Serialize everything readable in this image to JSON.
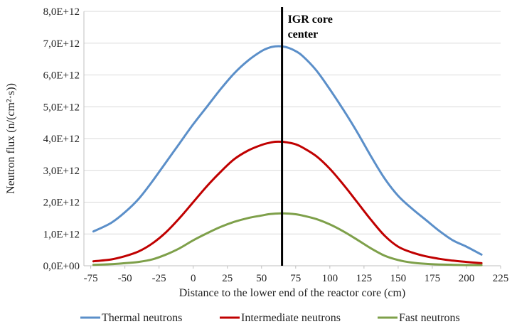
{
  "chart_data": {
    "type": "line",
    "xlabel": "Distance to the lower end of the reactor core (cm)",
    "ylabel": "Neutron flux (n/(cm²·s))",
    "xlim": [
      -80,
      225
    ],
    "ylim": [
      0,
      8000000000000.0
    ],
    "x_ticks": [
      -75,
      -50,
      -25,
      0,
      25,
      50,
      75,
      100,
      125,
      150,
      175,
      200,
      225
    ],
    "x_tick_labels": [
      "-75",
      "-50",
      "-25",
      "0",
      "25",
      "50",
      "75",
      "100",
      "125",
      "150",
      "175",
      "200",
      "225"
    ],
    "y_ticks": [
      0,
      1000000000000.0,
      2000000000000.0,
      3000000000000.0,
      4000000000000.0,
      5000000000000.0,
      6000000000000.0,
      7000000000000.0,
      8000000000000.0
    ],
    "y_tick_labels": [
      "0,0E+00",
      "1,0E+12",
      "2,0E+12",
      "3,0E+12",
      "4,0E+12",
      "5,0E+12",
      "6,0E+12",
      "7,0E+12",
      "8,0E+12"
    ],
    "grid": "horizontal",
    "legend_position": "bottom",
    "annotation": {
      "line1": "IGR core",
      "line2": "center",
      "x": 65
    },
    "series": [
      {
        "name": "Thermal neutrons",
        "color": "#5b8fc9",
        "x": [
          -73,
          -60,
          -50,
          -40,
          -30,
          -20,
          -10,
          0,
          10,
          20,
          30,
          40,
          50,
          55,
          60,
          65,
          70,
          75,
          80,
          90,
          100,
          110,
          120,
          130,
          140,
          150,
          160,
          170,
          180,
          190,
          200,
          211
        ],
        "y": [
          1080000000000.0,
          1350000000000.0,
          1680000000000.0,
          2100000000000.0,
          2650000000000.0,
          3250000000000.0,
          3850000000000.0,
          4450000000000.0,
          5000000000000.0,
          5550000000000.0,
          6050000000000.0,
          6450000000000.0,
          6750000000000.0,
          6850000000000.0,
          6900000000000.0,
          6900000000000.0,
          6850000000000.0,
          6750000000000.0,
          6600000000000.0,
          6150000000000.0,
          5550000000000.0,
          4900000000000.0,
          4200000000000.0,
          3450000000000.0,
          2750000000000.0,
          2200000000000.0,
          1800000000000.0,
          1450000000000.0,
          1100000000000.0,
          800000000000.0,
          600000000000.0,
          350000000000.0
        ]
      },
      {
        "name": "Intermediate neutrons",
        "color": "#c00000",
        "x": [
          -73,
          -60,
          -50,
          -40,
          -30,
          -20,
          -10,
          0,
          10,
          20,
          30,
          40,
          50,
          55,
          60,
          65,
          70,
          75,
          80,
          90,
          100,
          110,
          120,
          130,
          140,
          150,
          160,
          170,
          180,
          190,
          200,
          211
        ],
        "y": [
          140000000000.0,
          200000000000.0,
          300000000000.0,
          450000000000.0,
          700000000000.0,
          1050000000000.0,
          1500000000000.0,
          2000000000000.0,
          2500000000000.0,
          2950000000000.0,
          3350000000000.0,
          3620000000000.0,
          3800000000000.0,
          3860000000000.0,
          3900000000000.0,
          3900000000000.0,
          3870000000000.0,
          3820000000000.0,
          3720000000000.0,
          3450000000000.0,
          3050000000000.0,
          2550000000000.0,
          2000000000000.0,
          1450000000000.0,
          950000000000.0,
          600000000000.0,
          420000000000.0,
          300000000000.0,
          220000000000.0,
          160000000000.0,
          120000000000.0,
          80000000000.0
        ]
      },
      {
        "name": "Fast neutrons",
        "color": "#7ea04a",
        "x": [
          -73,
          -60,
          -50,
          -40,
          -30,
          -20,
          -10,
          0,
          10,
          20,
          30,
          40,
          50,
          55,
          60,
          65,
          70,
          75,
          80,
          90,
          100,
          110,
          120,
          130,
          140,
          150,
          160,
          170,
          180,
          190,
          200,
          211
        ],
        "y": [
          30000000000.0,
          50000000000.0,
          80000000000.0,
          120000000000.0,
          200000000000.0,
          350000000000.0,
          550000000000.0,
          800000000000.0,
          1020000000000.0,
          1220000000000.0,
          1380000000000.0,
          1500000000000.0,
          1580000000000.0,
          1620000000000.0,
          1640000000000.0,
          1650000000000.0,
          1640000000000.0,
          1620000000000.0,
          1580000000000.0,
          1470000000000.0,
          1300000000000.0,
          1080000000000.0,
          820000000000.0,
          550000000000.0,
          320000000000.0,
          180000000000.0,
          100000000000.0,
          60000000000.0,
          40000000000.0,
          30000000000.0,
          20000000000.0,
          20000000000.0
        ]
      }
    ]
  }
}
